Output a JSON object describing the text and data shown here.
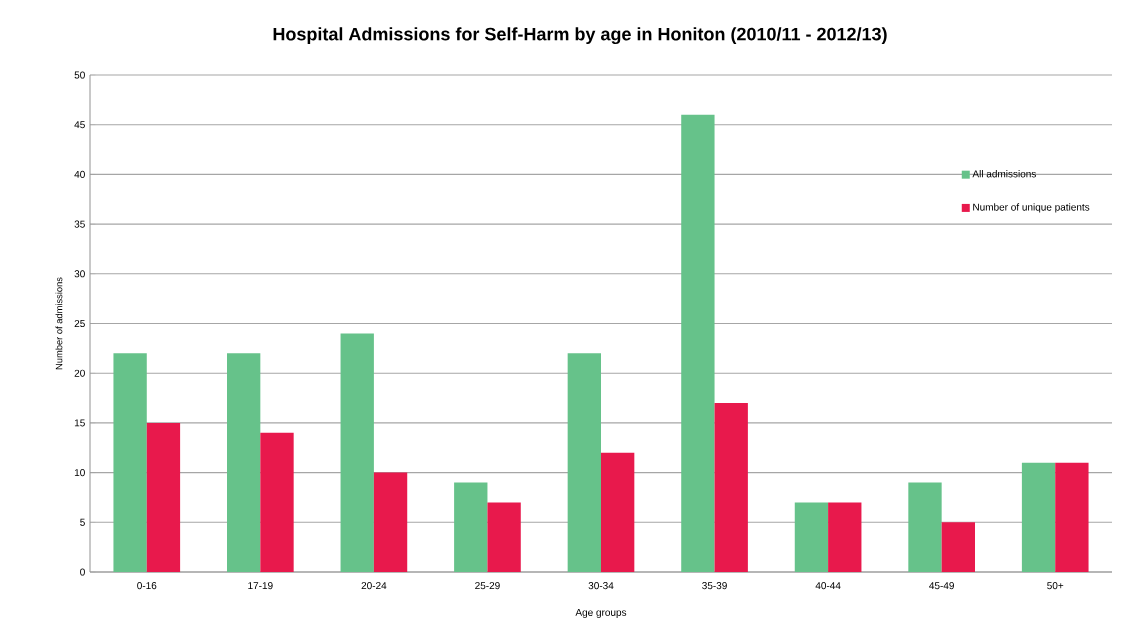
{
  "chart_data": {
    "type": "bar",
    "title": "Hospital Admissions for Self-Harm by age in Honiton (2010/11 - 2012/13)",
    "xlabel": "Age groups",
    "ylabel": "Number of admissions",
    "categories": [
      "0-16",
      "17-19",
      "20-24",
      "25-29",
      "30-34",
      "35-39",
      "40-44",
      "45-49",
      "50+"
    ],
    "series": [
      {
        "name": "All admissions",
        "color": "#66c28a",
        "values": [
          22,
          22,
          24,
          9,
          22,
          46,
          7,
          9,
          11
        ]
      },
      {
        "name": "Number of unique patients",
        "color": "#e8194c",
        "values": [
          15,
          14,
          10,
          7,
          12,
          17,
          7,
          5,
          11
        ]
      }
    ],
    "ylim": [
      0,
      50
    ],
    "yticks": [
      0,
      5,
      10,
      15,
      20,
      25,
      30,
      35,
      40,
      45,
      50
    ],
    "grid": "y",
    "legend": "right"
  }
}
